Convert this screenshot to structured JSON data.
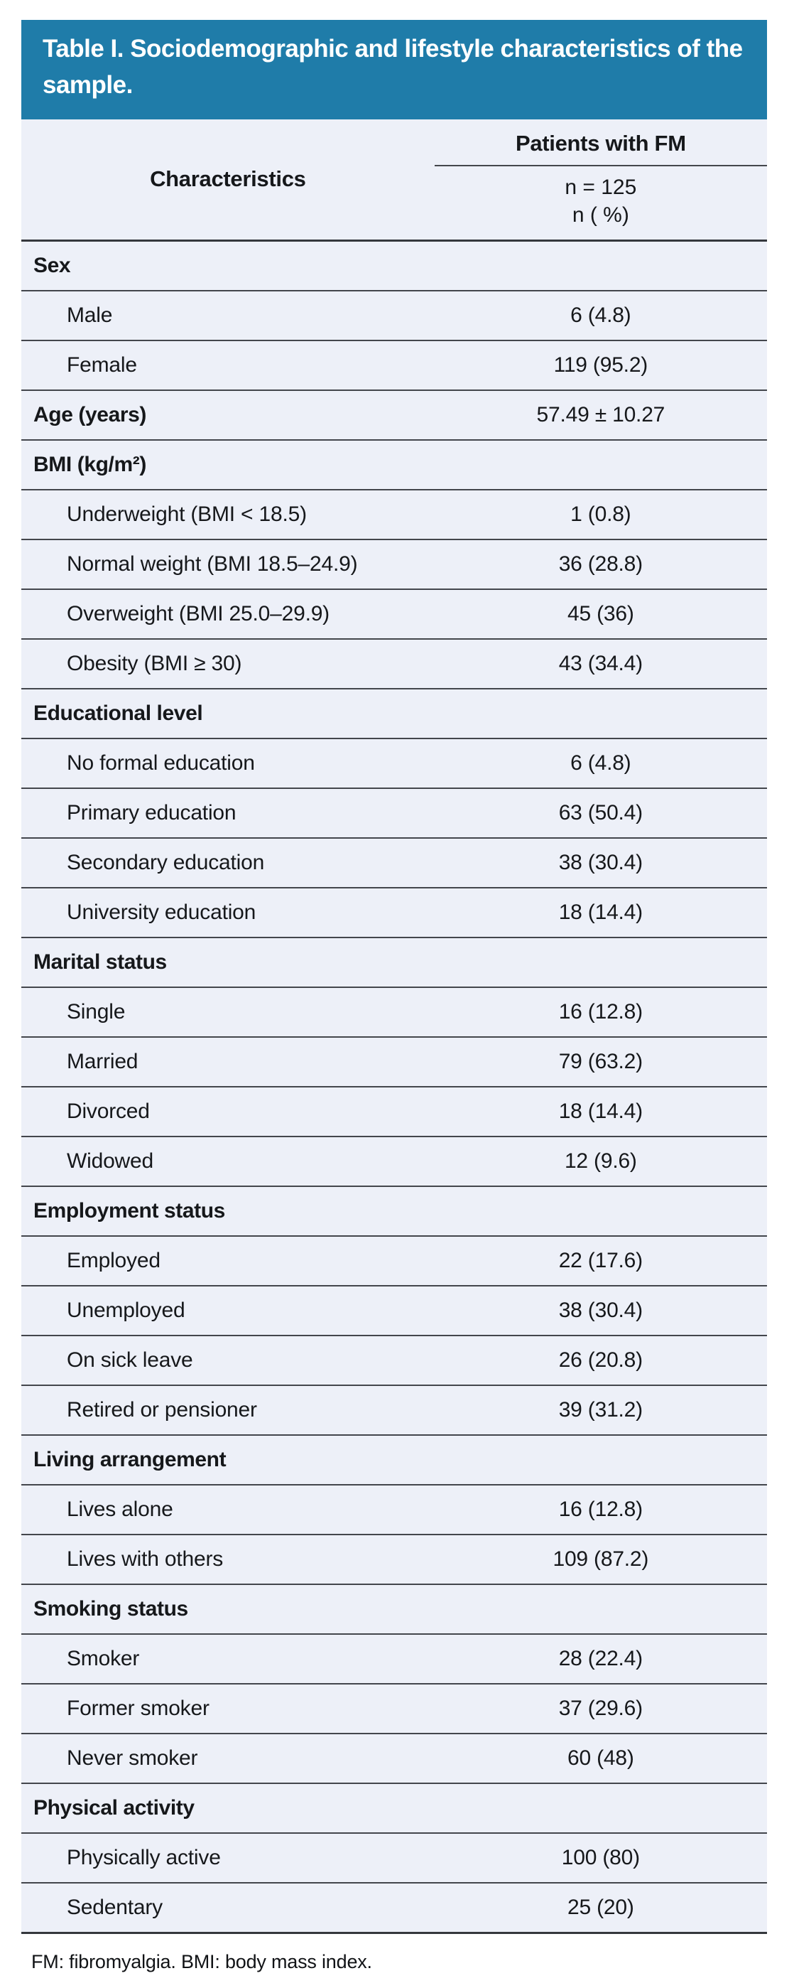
{
  "colors": {
    "title_bg": "#1f7ca9",
    "row_bg": "#edf0f8",
    "rule": "#43464c",
    "heavy_rule": "#35383d",
    "title_text": "#ffffff",
    "body_text": "#16181b"
  },
  "table": {
    "title": "Table I. Sociodemographic and lifestyle characteristics of the sample.",
    "header": {
      "col1": "Characteristics",
      "col2_group": "Patients with FM",
      "col2_sub1": "n = 125",
      "col2_sub2": "n ( %)"
    },
    "rows": [
      {
        "type": "section",
        "label": "Sex",
        "value": ""
      },
      {
        "type": "item",
        "label": "Male",
        "value": "6 (4.8)"
      },
      {
        "type": "item",
        "label": "Female",
        "value": "119 (95.2)"
      },
      {
        "type": "section",
        "label": "Age (years)",
        "value": "57.49 ± 10.27"
      },
      {
        "type": "section",
        "label": "BMI (kg/m²)",
        "value": ""
      },
      {
        "type": "item",
        "label": "Underweight (BMI < 18.5)",
        "value": "1 (0.8)"
      },
      {
        "type": "item",
        "label": "Normal weight (BMI 18.5–24.9)",
        "value": "36 (28.8)"
      },
      {
        "type": "item",
        "label": "Overweight (BMI 25.0–29.9)",
        "value": "45 (36)"
      },
      {
        "type": "item",
        "label": "Obesity (BMI ≥ 30)",
        "value": "43 (34.4)"
      },
      {
        "type": "section",
        "label": "Educational level",
        "value": ""
      },
      {
        "type": "item",
        "label": "No formal education",
        "value": "6 (4.8)"
      },
      {
        "type": "item",
        "label": "Primary education",
        "value": "63 (50.4)"
      },
      {
        "type": "item",
        "label": "Secondary education",
        "value": "38 (30.4)"
      },
      {
        "type": "item",
        "label": "University education",
        "value": "18 (14.4)"
      },
      {
        "type": "section",
        "label": "Marital status",
        "value": ""
      },
      {
        "type": "item",
        "label": "Single",
        "value": "16 (12.8)"
      },
      {
        "type": "item",
        "label": "Married",
        "value": "79 (63.2)"
      },
      {
        "type": "item",
        "label": "Divorced",
        "value": "18 (14.4)"
      },
      {
        "type": "item",
        "label": "Widowed",
        "value": "12 (9.6)"
      },
      {
        "type": "section",
        "label": "Employment status",
        "value": ""
      },
      {
        "type": "item",
        "label": "Employed",
        "value": "22 (17.6)"
      },
      {
        "type": "item",
        "label": "Unemployed",
        "value": "38 (30.4)"
      },
      {
        "type": "item",
        "label": "On sick leave",
        "value": "26 (20.8)"
      },
      {
        "type": "item",
        "label": "Retired or pensioner",
        "value": "39 (31.2)"
      },
      {
        "type": "section",
        "label": "Living arrangement",
        "value": ""
      },
      {
        "type": "item",
        "label": "Lives alone",
        "value": "16 (12.8)"
      },
      {
        "type": "item",
        "label": "Lives with others",
        "value": "109 (87.2)"
      },
      {
        "type": "section",
        "label": "Smoking status",
        "value": ""
      },
      {
        "type": "item",
        "label": "Smoker",
        "value": "28 (22.4)"
      },
      {
        "type": "item",
        "label": "Former smoker",
        "value": "37 (29.6)"
      },
      {
        "type": "item",
        "label": "Never smoker",
        "value": "60 (48)"
      },
      {
        "type": "section",
        "label": "Physical activity",
        "value": ""
      },
      {
        "type": "item",
        "label": "Physically active",
        "value": "100 (80)"
      },
      {
        "type": "item",
        "label": "Sedentary",
        "value": "25 (20)"
      }
    ],
    "footnote": "FM: fibromyalgia. BMI: body mass index."
  }
}
